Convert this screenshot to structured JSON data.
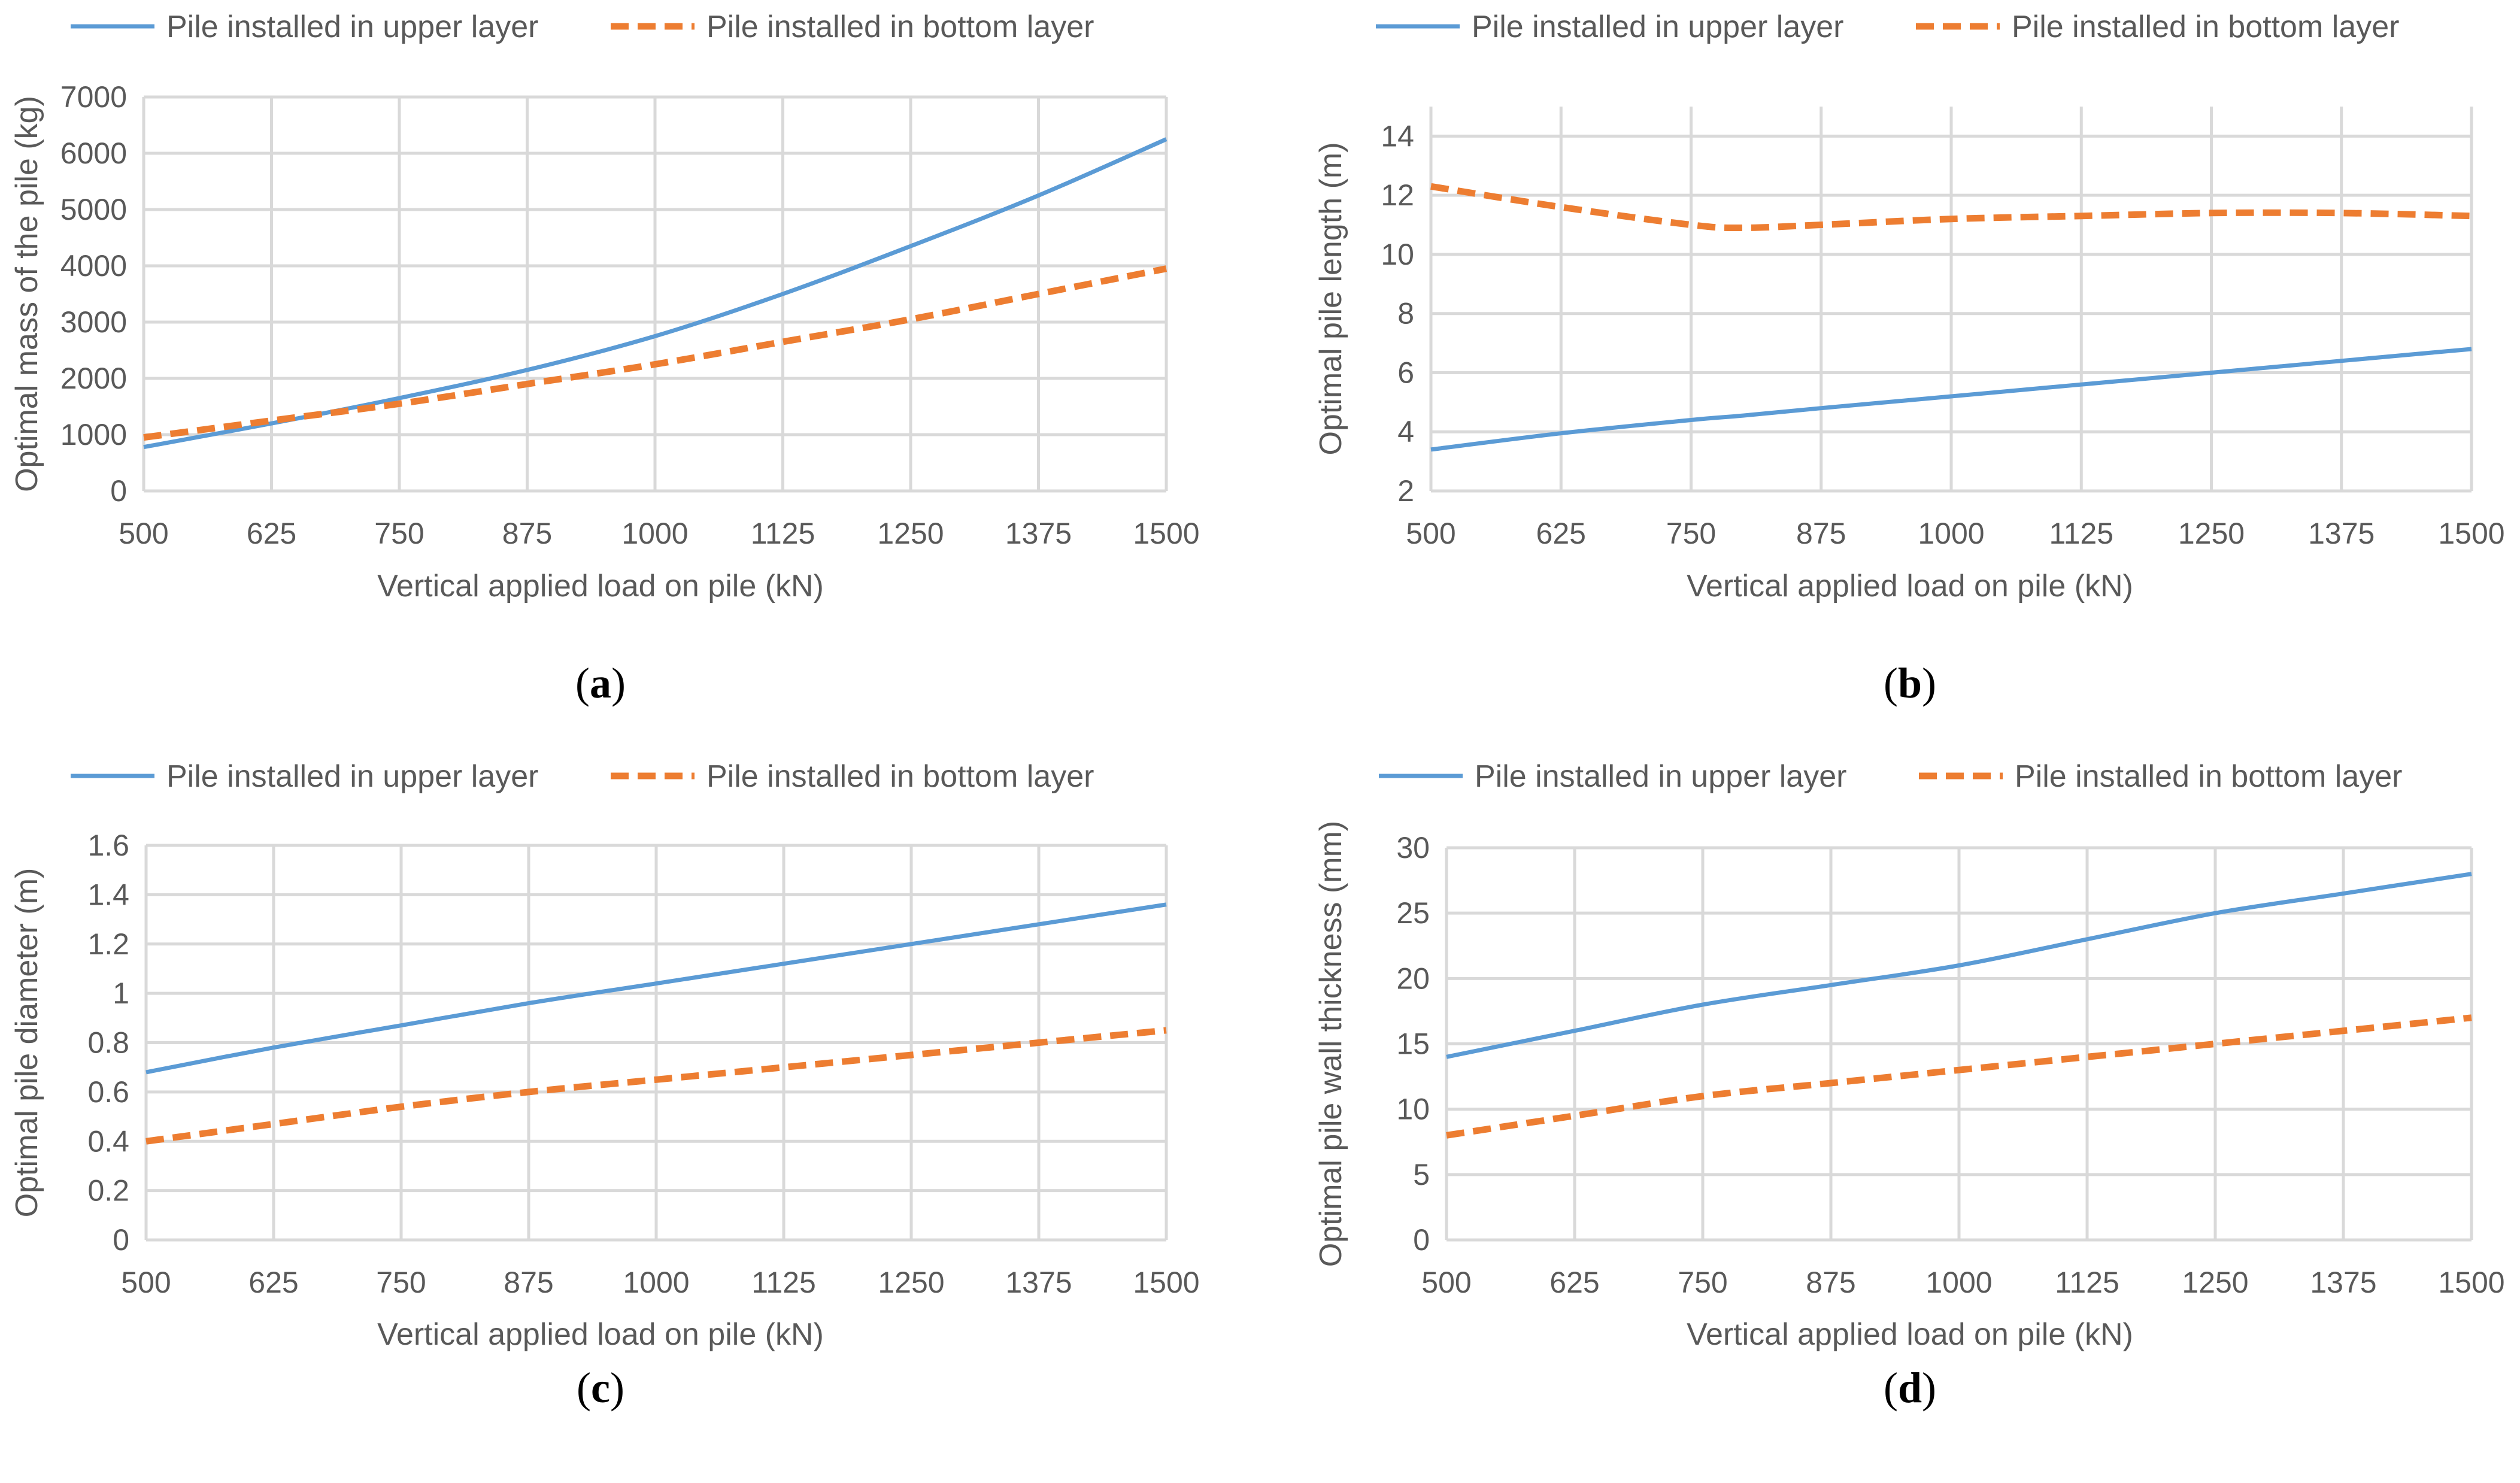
{
  "colors": {
    "upper": "#5b9bd5",
    "bottom": "#ed7d31",
    "grid": "#d9d9d9",
    "text": "#595959"
  },
  "chart_data": [
    {
      "id": "a",
      "type": "line",
      "panel_letter": "a",
      "panel_label": "(a)",
      "title": "",
      "xlabel": "Vertical applied load on pile (kN)",
      "ylabel": "Optimal mass of the pile (kg)",
      "xlim": [
        500,
        1500
      ],
      "ylim": [
        0,
        7000
      ],
      "x_ticks": [
        500,
        625,
        750,
        875,
        1000,
        1125,
        1250,
        1375,
        1500
      ],
      "y_ticks": [
        0,
        1000,
        2000,
        3000,
        4000,
        5000,
        6000,
        7000
      ],
      "legend_position": "top",
      "x": [
        500,
        625,
        750,
        875,
        1000,
        1125,
        1250,
        1375,
        1500
      ],
      "series": [
        {
          "name": "Pile installed in upper layer",
          "style": "solid",
          "values": [
            780,
            1200,
            1650,
            2150,
            2750,
            3500,
            4350,
            5250,
            6250
          ]
        },
        {
          "name": "Pile installed in bottom layer",
          "style": "dashed",
          "values": [
            950,
            1250,
            1550,
            1900,
            2250,
            2650,
            3050,
            3500,
            3950
          ]
        }
      ]
    },
    {
      "id": "b",
      "type": "line",
      "panel_letter": "b",
      "panel_label": "(b)",
      "title": "",
      "xlabel": "Vertical applied load on pile (kN)",
      "ylabel": "Optimal pile length (m)",
      "xlim": [
        500,
        1500
      ],
      "ylim": [
        2,
        15
      ],
      "x_ticks": [
        500,
        625,
        750,
        875,
        1000,
        1125,
        1250,
        1375,
        1500
      ],
      "y_ticks": [
        2,
        4,
        6,
        8,
        10,
        12,
        14
      ],
      "legend_position": "top",
      "x": [
        500,
        625,
        750,
        800,
        875,
        1000,
        1125,
        1250,
        1375,
        1500
      ],
      "series": [
        {
          "name": "Pile installed in upper layer",
          "style": "solid",
          "values": [
            3.4,
            3.95,
            4.4,
            4.55,
            4.8,
            5.2,
            5.6,
            6.0,
            6.4,
            6.8
          ]
        },
        {
          "name": "Pile installed in bottom layer",
          "style": "dashed",
          "values": [
            12.3,
            11.6,
            11.0,
            10.9,
            11.0,
            11.2,
            11.3,
            11.4,
            11.4,
            11.3
          ]
        }
      ]
    },
    {
      "id": "c",
      "type": "line",
      "panel_letter": "c",
      "panel_label": "(c)",
      "title": "",
      "xlabel": "Vertical applied load on pile (kN)",
      "ylabel": "Optimal pile diameter (m)",
      "xlim": [
        500,
        1500
      ],
      "ylim": [
        0,
        1.6
      ],
      "x_ticks": [
        500,
        625,
        750,
        875,
        1000,
        1125,
        1250,
        1375,
        1500
      ],
      "y_ticks": [
        0,
        0.2,
        0.4,
        0.6,
        0.8,
        1,
        1.2,
        1.4,
        1.6
      ],
      "legend_position": "top",
      "x": [
        500,
        625,
        750,
        875,
        1000,
        1125,
        1250,
        1375,
        1500
      ],
      "series": [
        {
          "name": "Pile installed in upper layer",
          "style": "solid",
          "values": [
            0.68,
            0.78,
            0.87,
            0.96,
            1.04,
            1.12,
            1.2,
            1.28,
            1.36
          ]
        },
        {
          "name": "Pile installed in bottom layer",
          "style": "dashed",
          "values": [
            0.4,
            0.47,
            0.54,
            0.6,
            0.65,
            0.7,
            0.75,
            0.8,
            0.85
          ]
        }
      ]
    },
    {
      "id": "d",
      "type": "line",
      "panel_letter": "d",
      "panel_label": "(d)",
      "title": "",
      "xlabel": "Vertical applied load on pile (kN)",
      "ylabel": "Optimal pile wall thickness (mm)",
      "xlim": [
        500,
        1500
      ],
      "ylim": [
        0,
        30
      ],
      "x_ticks": [
        500,
        625,
        750,
        875,
        1000,
        1125,
        1250,
        1375,
        1500
      ],
      "y_ticks": [
        0,
        5,
        10,
        15,
        20,
        25,
        30
      ],
      "legend_position": "top",
      "x": [
        500,
        625,
        750,
        875,
        1000,
        1125,
        1250,
        1375,
        1500
      ],
      "series": [
        {
          "name": "Pile installed in upper layer",
          "style": "solid",
          "values": [
            14,
            16,
            18,
            19.5,
            21,
            23,
            25,
            26.5,
            28
          ]
        },
        {
          "name": "Pile installed in bottom layer",
          "style": "dashed",
          "values": [
            8,
            9.5,
            11,
            12,
            13,
            14,
            15,
            16,
            17
          ]
        }
      ]
    }
  ]
}
